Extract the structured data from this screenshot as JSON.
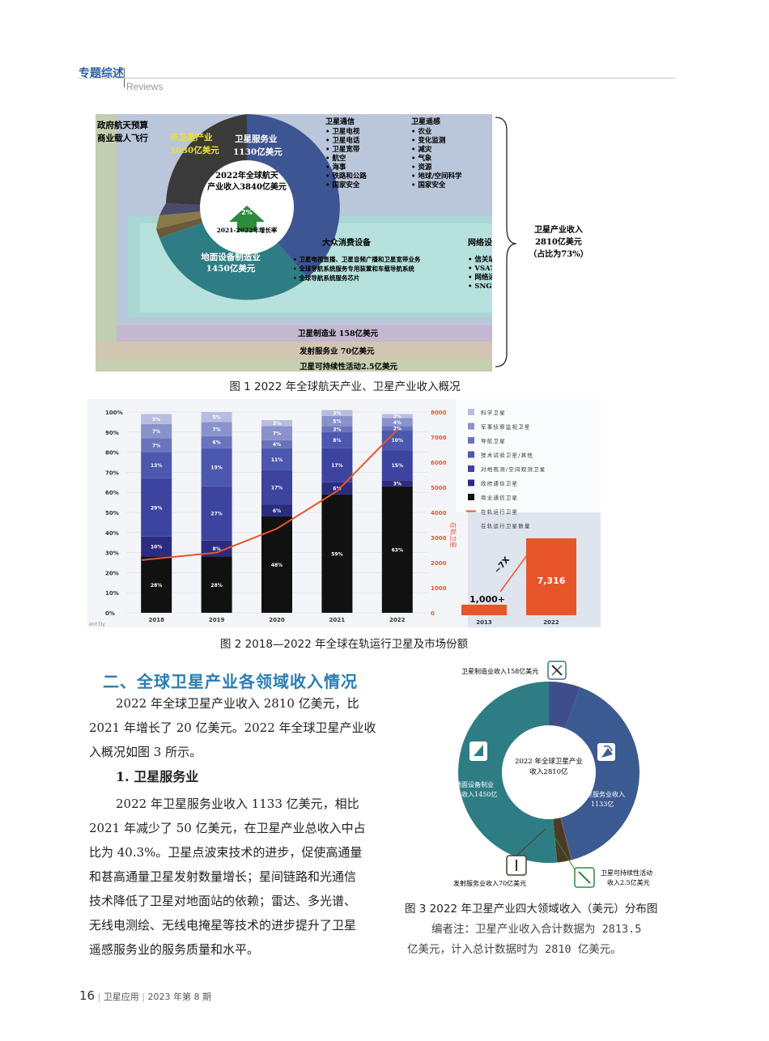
{
  "header": {
    "section": "专题综述",
    "section_en": "Reviews"
  },
  "figure1": {
    "caption": "图 1  2022 年全球航天产业、卫星产业收入概况",
    "left_text": [
      "政府航天预算",
      "商业载人飞行"
    ],
    "non_sat": [
      "非卫星产业",
      "1030亿美元"
    ],
    "sat_service": [
      "卫星服务业",
      "1130亿美元"
    ],
    "center": [
      "2022年全球航天",
      "产业收入3840亿美元"
    ],
    "growth": "2%",
    "growth_label": "2021-2022年增长率",
    "ground": [
      "地面设备制造业",
      "1450亿美元"
    ],
    "telecom_title": "卫星通信",
    "telecom_items": [
      "• 卫星电视",
      "• 卫星电话",
      "• 卫星宽带",
      "• 航空",
      "• 海事",
      "• 铁路和公路",
      "• 国家安全"
    ],
    "remote_title": "卫星遥感",
    "remote_items": [
      "• 农业",
      "• 变化监测",
      "• 减灾",
      "• 气象",
      "• 资源",
      "• 地球/空间科学",
      "• 国家安全"
    ],
    "consumer_title": "大众消费设备",
    "consumer_items": [
      "• 卫星电视直播、卫星音频广播和卫星宽带业务",
      "• 全球导航系统服务专用装置和车载导航系统",
      "• 全球导航系统服务芯片"
    ],
    "network_title": "网络设备",
    "network_items": [
      "• 信关站",
      "• VSAT终端",
      "• 网络运行中心",
      "• SNG设备"
    ],
    "bracket_text": [
      "卫星产业收入",
      "2810亿美元",
      "（占比为73%）"
    ],
    "manufacturing": "卫星制造业 158亿美元",
    "launch": "发射服务业 70亿美元",
    "sustain": "卫星可持续性活动2.5亿美元"
  },
  "figure2": {
    "caption": "图 2  2018—2022 年全球在轨运行卫星及市场份额",
    "y_left_ticks": [
      "0%",
      "10%",
      "20%",
      "30%",
      "40%",
      "50%",
      "60%",
      "70%",
      "80%",
      "90%",
      "100%"
    ],
    "y_right_ticks": [
      "0",
      "1000",
      "2000",
      "3000",
      "4000",
      "5000",
      "6000",
      "7000",
      "8000"
    ],
    "y_right_label": "在轨卫星",
    "source_text": "ent Dy",
    "legend": [
      "科学卫星",
      "军事侦察监视卫星",
      "导航卫星",
      "技术试验卫星/其他",
      "对地观测/空间观测卫星",
      "政府通信卫星",
      "商业通信卫星",
      "在轨运行卫星",
      "在轨运行卫星数量"
    ],
    "inset": {
      "labels": [
        "1,000+",
        "7,316"
      ],
      "years": [
        "2013",
        "2022"
      ],
      "multiplier": "~7X"
    }
  },
  "chart_data": [
    {
      "type": "bar",
      "stacked": true,
      "categories": [
        "2018",
        "2019",
        "2020",
        "2021",
        "2022"
      ],
      "series": [
        {
          "name": "商业通信卫星",
          "color": "#111111",
          "values": [
            28,
            28,
            48,
            59,
            63
          ]
        },
        {
          "name": "政府通信卫星",
          "color": "#2b2c80",
          "values": [
            10,
            8,
            6,
            6,
            3
          ]
        },
        {
          "name": "对地观测/空间观测卫星",
          "color": "#3d44a0",
          "values": [
            29,
            27,
            17,
            17,
            15
          ]
        },
        {
          "name": "技术试验卫星/其他",
          "color": "#4c58ae",
          "values": [
            13,
            19,
            11,
            8,
            10
          ]
        },
        {
          "name": "导航卫星",
          "color": "#6a74bc",
          "values": [
            7,
            6,
            4,
            3,
            2
          ]
        },
        {
          "name": "军事侦察监视卫星",
          "color": "#8a92cc",
          "values": [
            7,
            7,
            7,
            5,
            4
          ]
        },
        {
          "name": "科学卫星",
          "color": "#b8bde0",
          "values": [
            5,
            5,
            3,
            3,
            2
          ]
        }
      ],
      "labels": [
        [
          "28%",
          "10%",
          "29%",
          "13%",
          "7%",
          "7%",
          "5%"
        ],
        [
          "28%",
          "8%",
          "27%",
          "19%",
          "6%",
          "7%",
          "5%"
        ],
        [
          "48%",
          "6%",
          "17%",
          "11%",
          "4%",
          "7%",
          "3%"
        ],
        [
          "59%",
          "6%",
          "17%",
          "8%",
          "3%",
          "5%",
          "3%"
        ],
        [
          "63%",
          "3%",
          "15%",
          "10%",
          "2%",
          "4%",
          "2%"
        ]
      ],
      "line": {
        "name": "在轨运行卫星",
        "color": "#e8552b",
        "values": [
          2100,
          2400,
          3350,
          4850,
          7300
        ]
      },
      "ylim": [
        0,
        100
      ],
      "y2lim": [
        0,
        8000
      ]
    },
    {
      "type": "bar",
      "categories": [
        "2013",
        "2022"
      ],
      "values": [
        1000,
        7316
      ]
    },
    {
      "type": "pie",
      "title": "2022年全球卫星产业收入2810亿",
      "categories": [
        "卫星制造业收入158亿美元",
        "卫星服务业收入1133亿",
        "卫星可持续性活动收入2.5亿美元",
        "发射服务业收入70亿美元",
        "地面设备制造业收入1450亿"
      ],
      "values": [
        158,
        1133,
        2.5,
        70,
        1450
      ],
      "colors": [
        "#3e4e8c",
        "#3b5a92",
        "#6a5a3a",
        "#4a3a26",
        "#2f7d84"
      ]
    }
  ],
  "section_title": "二、全球卫星产业各领域收入情况",
  "para1": [
    "2022 年全球卫星产业收入 2810 亿美元，比",
    "2021 年增长了 20 亿美元。2022 年全球卫星产业收",
    "入概况如图 3 所示。"
  ],
  "subsection": "1. 卫星服务业",
  "para2": [
    "2022 年卫星服务业收入 1133 亿美元，相比",
    "2021 年减少了 50 亿美元，在卫星产业总收入中占",
    "比为 40.3%。卫星点波束技术的进步，促使高通量",
    "和甚高通量卫星发射数量增长；星间链路和光通信",
    "技术降低了卫星对地面站的依赖；雷达、多光谱、",
    "无线电测绘、无线电掩星等技术的进步提升了卫星",
    "遥感服务业的服务质量和水平。"
  ],
  "figure3": {
    "caption": "图 3  2022 年卫星产业四大领域收入（美元）分布图",
    "center": [
      "2022 年全球卫星产业",
      "收入2810亿"
    ],
    "label_mfg": "卫星制造业收入158亿美元",
    "label_service": [
      "卫星服务业收入",
      "1133亿"
    ],
    "label_ground": [
      "地面设备制业",
      "收入1450亿"
    ],
    "label_launch": "发射服务业收入70亿美元",
    "label_sustain": [
      "卫星可持续性活动",
      "收入2.5亿美元"
    ]
  },
  "editor_note": [
    "编者注：卫星产业收入合计数据为 2813.5",
    "亿美元，计入总计数据时为 2810 亿美元。"
  ],
  "footer": {
    "page": "16",
    "journal": "卫星应用",
    "issue": "2023 年第 8 期"
  }
}
